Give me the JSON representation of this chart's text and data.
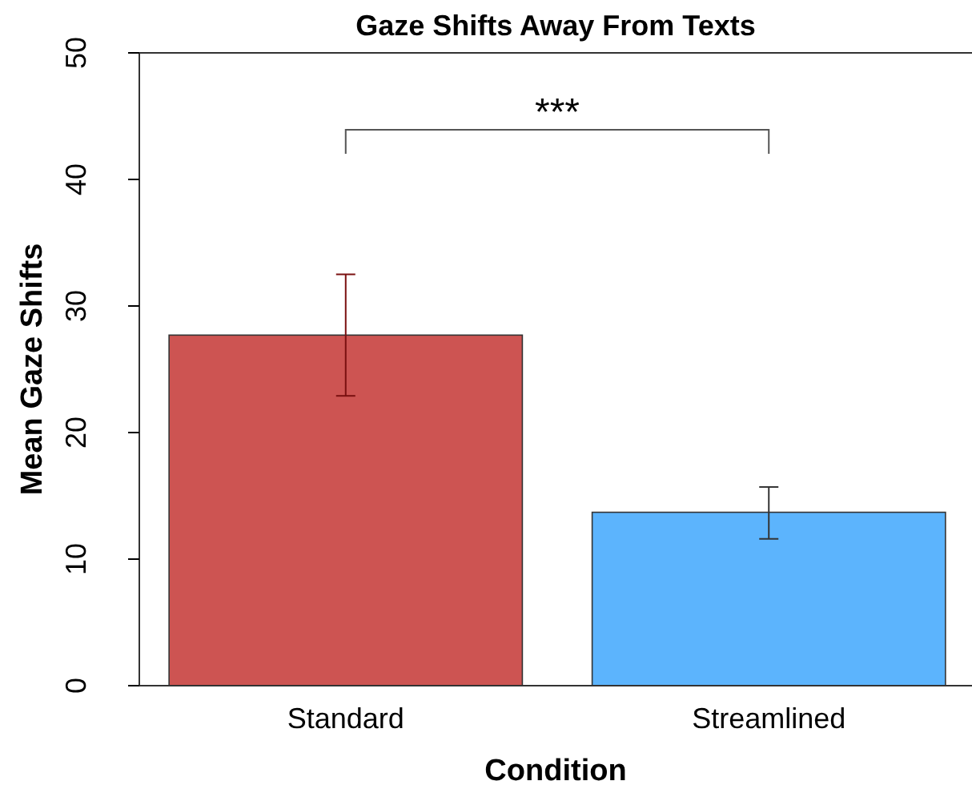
{
  "chart_data": {
    "type": "bar",
    "title": "Gaze Shifts Away From Texts",
    "xlabel": "Condition",
    "ylabel": "Mean Gaze Shifts",
    "categories": [
      "Standard",
      "Streamlined"
    ],
    "values": [
      27.7,
      13.7
    ],
    "colors": [
      "#cd5452",
      "#5cb4fd"
    ],
    "errors": [
      [
        22.9,
        32.5
      ],
      [
        11.6,
        15.7
      ]
    ],
    "ylim": [
      0,
      50
    ],
    "yticks": [
      0,
      10,
      20,
      30,
      40,
      50
    ],
    "annotations": [
      "***"
    ],
    "grid": false
  }
}
